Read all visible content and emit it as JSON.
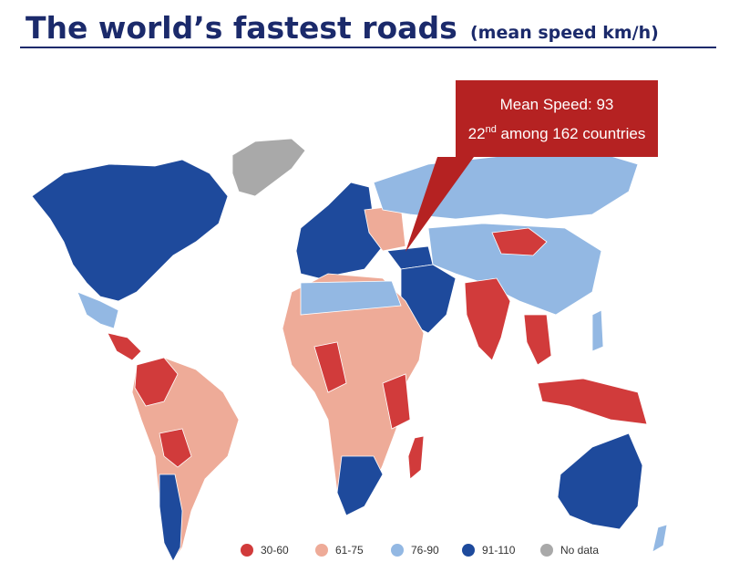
{
  "header": {
    "title": "The world’s fastest roads",
    "subtitle": "(mean speed km/h)"
  },
  "callout": {
    "heading": "Mean Speed: 93",
    "rank": "22",
    "rank_suffix": "nd",
    "rank_text": " among 162 countries"
  },
  "legend": [
    {
      "label": "30-60",
      "color": "#d13b3b"
    },
    {
      "label": "61-75",
      "color": "#eeab98"
    },
    {
      "label": "76-90",
      "color": "#93b8e3"
    },
    {
      "label": "91-110",
      "color": "#1e4a9c"
    },
    {
      "label": "No data",
      "color": "#a9a9a9"
    }
  ]
}
